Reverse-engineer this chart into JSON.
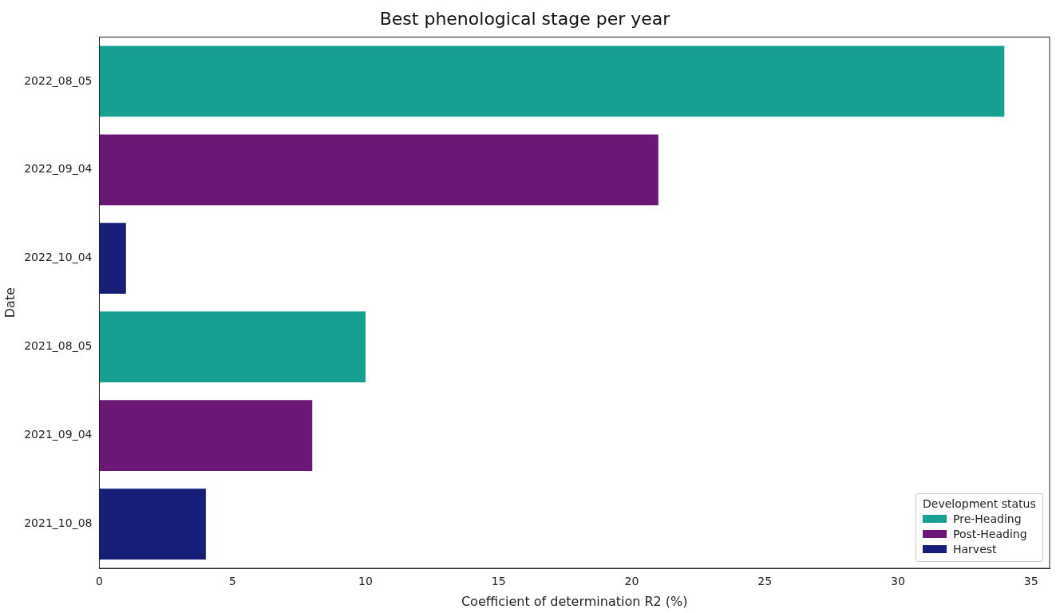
{
  "chart_data": {
    "type": "bar",
    "title": "Best phenological stage per year",
    "xlabel": "Coefficient of determination R2 (%)",
    "ylabel": "Date",
    "legend_title": "Development status",
    "orientation": "horizontal",
    "categories": [
      "2022_08_05",
      "2022_09_04",
      "2022_10_04",
      "2021_08_05",
      "2021_09_04",
      "2021_10_08"
    ],
    "series": [
      {
        "name": "Pre-Heading",
        "color": "#17a092",
        "values": [
          34,
          null,
          null,
          10,
          null,
          null
        ]
      },
      {
        "name": "Post-Heading",
        "color": "#6a1776",
        "values": [
          null,
          21,
          null,
          null,
          8,
          null
        ]
      },
      {
        "name": "Harvest",
        "color": "#161e78",
        "values": [
          null,
          null,
          1,
          null,
          null,
          4
        ]
      }
    ],
    "xlim": [
      0,
      35.7
    ],
    "xticks": [
      0,
      5,
      10,
      15,
      20,
      25,
      30,
      35
    ],
    "grid": false,
    "legend": "bottom right"
  }
}
